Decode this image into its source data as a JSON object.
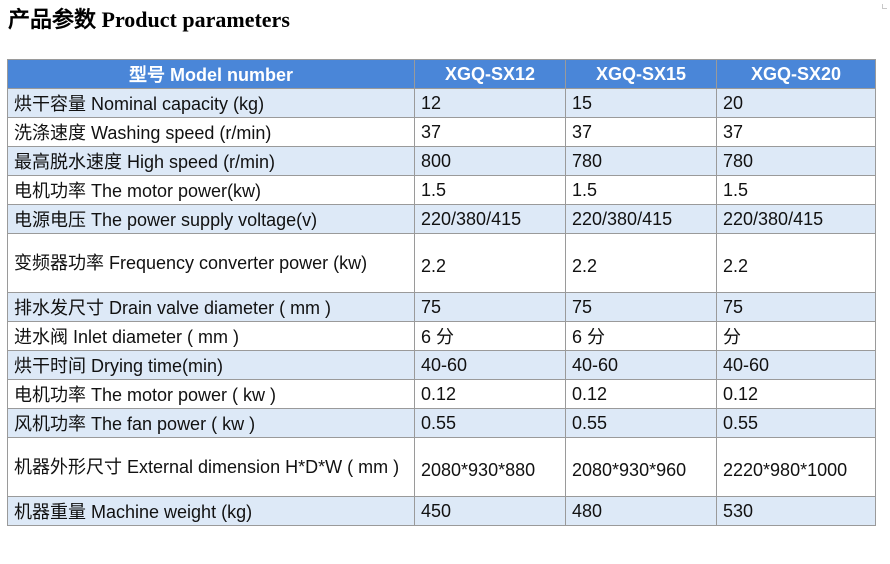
{
  "title": "产品参数 Product parameters",
  "table": {
    "header": {
      "label": "型号 Model number",
      "models": [
        "XGQ-SX12",
        "XGQ-SX15",
        "XGQ-SX20"
      ]
    },
    "rows": [
      {
        "label": "烘干容量 Nominal capacity (kg)",
        "values": [
          "12",
          "15",
          "20"
        ]
      },
      {
        "label": "洗涤速度 Washing speed (r/min)",
        "values": [
          "37",
          "37",
          "37"
        ]
      },
      {
        "label": "最高脱水速度 High speed (r/min)",
        "values": [
          "800",
          "780",
          "780"
        ]
      },
      {
        "label": "电机功率 The motor power(kw)",
        "values": [
          "1.5",
          "1.5",
          "1.5"
        ]
      },
      {
        "label": "电源电压 The power supply voltage(v)",
        "values": [
          "220/380/415",
          "220/380/415",
          "220/380/415"
        ]
      },
      {
        "label": "变频器功率 Frequency converter power (kw)",
        "values": [
          "2.2",
          "2.2",
          "2.2"
        ]
      },
      {
        "label": "排水发尺寸 Drain valve diameter ( mm )",
        "values": [
          "75",
          "75",
          "75"
        ]
      },
      {
        "label": "进水阀 Inlet diameter ( mm )",
        "values": [
          "6 分",
          "6 分",
          "分"
        ]
      },
      {
        "label": "烘干时间 Drying time(min)",
        "values": [
          "40-60",
          "40-60",
          "40-60"
        ]
      },
      {
        "label": "电机功率 The motor power ( kw )",
        "values": [
          "0.12",
          "0.12",
          "0.12"
        ]
      },
      {
        "label": "风机功率 The fan power ( kw )",
        "values": [
          "0.55",
          "0.55",
          "0.55"
        ]
      },
      {
        "label": "机器外形尺寸 External dimension H*D*W ( mm )",
        "values": [
          "2080*930*880",
          "2080*930*960",
          "2220*980*1000"
        ]
      },
      {
        "label": "机器重量 Machine weight (kg)",
        "values": [
          "450",
          "480",
          "530"
        ]
      }
    ]
  }
}
